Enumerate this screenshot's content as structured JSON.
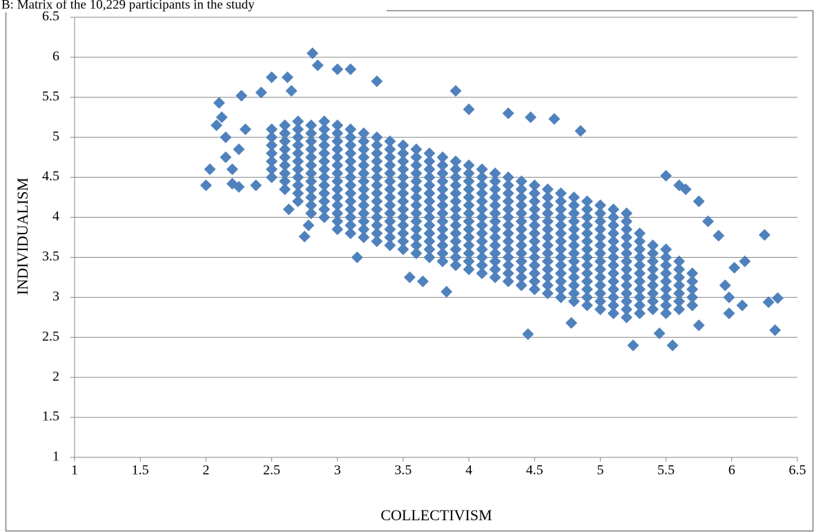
{
  "chart_data": {
    "type": "scatter",
    "title": "B: Matrix of the 10,229 participants in the study",
    "xlabel": "COLLECTIVISM",
    "ylabel": "INDIVIDUALISM",
    "color": "#4f81bd",
    "grid": true,
    "xlim": [
      1,
      6.5
    ],
    "ylim": [
      1,
      6.5
    ],
    "xticks": [
      1,
      1.5,
      2,
      2.5,
      3,
      3.5,
      4,
      4.5,
      5,
      5.5,
      6,
      6.5
    ],
    "yticks": [
      1,
      1.5,
      2,
      2.5,
      3,
      3.5,
      4,
      4.5,
      5,
      5.5,
      6,
      6.5
    ],
    "x": [
      2.5,
      2.5,
      2.5,
      2.5,
      2.5,
      2.5,
      2.5,
      2.6,
      2.6,
      2.6,
      2.6,
      2.6,
      2.6,
      2.6,
      2.6,
      2.6,
      2.7,
      2.7,
      2.7,
      2.7,
      2.7,
      2.7,
      2.7,
      2.7,
      2.7,
      2.7,
      2.7,
      2.8,
      2.8,
      2.8,
      2.8,
      2.8,
      2.8,
      2.8,
      2.8,
      2.8,
      2.8,
      2.8,
      2.8,
      2.9,
      2.9,
      2.9,
      2.9,
      2.9,
      2.9,
      2.9,
      2.9,
      2.9,
      2.9,
      2.9,
      2.9,
      2.9,
      3,
      3,
      3,
      3,
      3,
      3,
      3,
      3,
      3,
      3,
      3,
      3,
      3,
      3,
      3.1,
      3.1,
      3.1,
      3.1,
      3.1,
      3.1,
      3.1,
      3.1,
      3.1,
      3.1,
      3.1,
      3.1,
      3.1,
      3.1,
      3.2,
      3.2,
      3.2,
      3.2,
      3.2,
      3.2,
      3.2,
      3.2,
      3.2,
      3.2,
      3.2,
      3.2,
      3.2,
      3.2,
      3.3,
      3.3,
      3.3,
      3.3,
      3.3,
      3.3,
      3.3,
      3.3,
      3.3,
      3.3,
      3.3,
      3.3,
      3.3,
      3.3,
      3.4,
      3.4,
      3.4,
      3.4,
      3.4,
      3.4,
      3.4,
      3.4,
      3.4,
      3.4,
      3.4,
      3.4,
      3.4,
      3.4,
      3.5,
      3.5,
      3.5,
      3.5,
      3.5,
      3.5,
      3.5,
      3.5,
      3.5,
      3.5,
      3.5,
      3.5,
      3.5,
      3.5,
      3.6,
      3.6,
      3.6,
      3.6,
      3.6,
      3.6,
      3.6,
      3.6,
      3.6,
      3.6,
      3.6,
      3.6,
      3.6,
      3.6,
      3.7,
      3.7,
      3.7,
      3.7,
      3.7,
      3.7,
      3.7,
      3.7,
      3.7,
      3.7,
      3.7,
      3.7,
      3.7,
      3.7,
      3.8,
      3.8,
      3.8,
      3.8,
      3.8,
      3.8,
      3.8,
      3.8,
      3.8,
      3.8,
      3.8,
      3.8,
      3.8,
      3.8,
      3.9,
      3.9,
      3.9,
      3.9,
      3.9,
      3.9,
      3.9,
      3.9,
      3.9,
      3.9,
      3.9,
      3.9,
      3.9,
      3.9,
      4,
      4,
      4,
      4,
      4,
      4,
      4,
      4,
      4,
      4,
      4,
      4,
      4,
      4,
      4.1,
      4.1,
      4.1,
      4.1,
      4.1,
      4.1,
      4.1,
      4.1,
      4.1,
      4.1,
      4.1,
      4.1,
      4.1,
      4.1,
      4.2,
      4.2,
      4.2,
      4.2,
      4.2,
      4.2,
      4.2,
      4.2,
      4.2,
      4.2,
      4.2,
      4.2,
      4.2,
      4.2,
      4.3,
      4.3,
      4.3,
      4.3,
      4.3,
      4.3,
      4.3,
      4.3,
      4.3,
      4.3,
      4.3,
      4.3,
      4.3,
      4.3,
      4.4,
      4.4,
      4.4,
      4.4,
      4.4,
      4.4,
      4.4,
      4.4,
      4.4,
      4.4,
      4.4,
      4.4,
      4.4,
      4.4,
      4.5,
      4.5,
      4.5,
      4.5,
      4.5,
      4.5,
      4.5,
      4.5,
      4.5,
      4.5,
      4.5,
      4.5,
      4.5,
      4.5,
      4.6,
      4.6,
      4.6,
      4.6,
      4.6,
      4.6,
      4.6,
      4.6,
      4.6,
      4.6,
      4.6,
      4.6,
      4.6,
      4.6,
      4.7,
      4.7,
      4.7,
      4.7,
      4.7,
      4.7,
      4.7,
      4.7,
      4.7,
      4.7,
      4.7,
      4.7,
      4.7,
      4.7,
      4.8,
      4.8,
      4.8,
      4.8,
      4.8,
      4.8,
      4.8,
      4.8,
      4.8,
      4.8,
      4.8,
      4.8,
      4.8,
      4.8,
      4.9,
      4.9,
      4.9,
      4.9,
      4.9,
      4.9,
      4.9,
      4.9,
      4.9,
      4.9,
      4.9,
      4.9,
      4.9,
      4.9,
      5,
      5,
      5,
      5,
      5,
      5,
      5,
      5,
      5,
      5,
      5,
      5,
      5,
      5,
      5.1,
      5.1,
      5.1,
      5.1,
      5.1,
      5.1,
      5.1,
      5.1,
      5.1,
      5.1,
      5.1,
      5.1,
      5.1,
      5.1,
      5.2,
      5.2,
      5.2,
      5.2,
      5.2,
      5.2,
      5.2,
      5.2,
      5.2,
      5.2,
      5.2,
      5.2,
      5.2,
      5.2,
      5.3,
      5.3,
      5.3,
      5.3,
      5.3,
      5.3,
      5.3,
      5.3,
      5.3,
      5.3,
      5.3,
      5.4,
      5.4,
      5.4,
      5.4,
      5.4,
      5.4,
      5.4,
      5.4,
      5.4,
      5.5,
      5.5,
      5.5,
      5.5,
      5.5,
      5.5,
      5.5,
      5.5,
      5.5,
      5.6,
      5.6,
      5.6,
      5.6,
      5.6,
      5.6,
      5.6,
      5.7,
      5.7,
      5.7,
      5.7,
      5.7,
      2,
      2.03,
      2.08,
      2.1,
      2.12,
      2.15,
      2.15,
      2.2,
      2.2,
      2.25,
      2.27,
      2.3,
      2.25,
      2.38,
      2.42,
      2.5,
      2.62,
      2.65,
      2.75,
      2.78,
      2.81,
      2.85,
      3,
      3.1,
      3.3,
      2.63,
      3.15,
      3.55,
      3.65,
      3.83,
      3.9,
      4,
      4.3,
      4.47,
      4.65,
      4.85,
      4.45,
      4.78,
      5.25,
      5.55,
      5.45,
      5.5,
      5.6,
      5.65,
      5.75,
      5.82,
      5.9,
      6.25,
      6.1,
      6.02,
      5.95,
      5.98,
      5.98,
      6.08,
      6.28,
      6.35,
      6.33,
      5.75
    ],
    "values": [
      4.5,
      4.6,
      4.7,
      4.8,
      4.9,
      5,
      5.1,
      4.35,
      4.45,
      4.55,
      4.65,
      4.75,
      4.85,
      4.95,
      5.05,
      5.15,
      4.2,
      4.3,
      4.4,
      4.5,
      4.6,
      4.7,
      4.8,
      4.9,
      5,
      5.1,
      5.2,
      4.05,
      4.15,
      4.25,
      4.35,
      4.45,
      4.55,
      4.65,
      4.75,
      4.85,
      4.95,
      5.05,
      5.15,
      4,
      4.1,
      4.2,
      4.3,
      4.4,
      4.5,
      4.6,
      4.7,
      4.8,
      4.9,
      5,
      5.1,
      5.2,
      3.85,
      3.95,
      4.05,
      4.15,
      4.25,
      4.35,
      4.45,
      4.55,
      4.65,
      4.75,
      4.85,
      4.95,
      5.05,
      5.15,
      3.8,
      3.9,
      4,
      4.1,
      4.2,
      4.3,
      4.4,
      4.5,
      4.6,
      4.7,
      4.8,
      4.9,
      5,
      5.1,
      3.75,
      3.85,
      3.95,
      4.05,
      4.15,
      4.25,
      4.35,
      4.45,
      4.55,
      4.65,
      4.75,
      4.85,
      4.95,
      5.05,
      3.7,
      3.8,
      3.9,
      4,
      4.1,
      4.2,
      4.3,
      4.4,
      4.5,
      4.6,
      4.7,
      4.8,
      4.9,
      5,
      3.65,
      3.75,
      3.85,
      3.95,
      4.05,
      4.15,
      4.25,
      4.35,
      4.45,
      4.55,
      4.65,
      4.75,
      4.85,
      4.95,
      3.6,
      3.7,
      3.8,
      3.9,
      4,
      4.1,
      4.2,
      4.3,
      4.4,
      4.5,
      4.6,
      4.7,
      4.8,
      4.9,
      3.55,
      3.65,
      3.75,
      3.85,
      3.95,
      4.05,
      4.15,
      4.25,
      4.35,
      4.45,
      4.55,
      4.65,
      4.75,
      4.85,
      3.5,
      3.6,
      3.7,
      3.8,
      3.9,
      4,
      4.1,
      4.2,
      4.3,
      4.4,
      4.5,
      4.6,
      4.7,
      4.8,
      3.45,
      3.55,
      3.65,
      3.75,
      3.85,
      3.95,
      4.05,
      4.15,
      4.25,
      4.35,
      4.45,
      4.55,
      4.65,
      4.75,
      3.4,
      3.5,
      3.6,
      3.7,
      3.8,
      3.9,
      4,
      4.1,
      4.2,
      4.3,
      4.4,
      4.5,
      4.6,
      4.7,
      3.35,
      3.45,
      3.55,
      3.65,
      3.75,
      3.85,
      3.95,
      4.05,
      4.15,
      4.25,
      4.35,
      4.45,
      4.55,
      4.65,
      3.3,
      3.4,
      3.5,
      3.6,
      3.7,
      3.8,
      3.9,
      4,
      4.1,
      4.2,
      4.3,
      4.4,
      4.5,
      4.6,
      3.25,
      3.35,
      3.45,
      3.55,
      3.65,
      3.75,
      3.85,
      3.95,
      4.05,
      4.15,
      4.25,
      4.35,
      4.45,
      4.55,
      3.2,
      3.3,
      3.4,
      3.5,
      3.6,
      3.7,
      3.8,
      3.9,
      4,
      4.1,
      4.2,
      4.3,
      4.4,
      4.5,
      3.15,
      3.25,
      3.35,
      3.45,
      3.55,
      3.65,
      3.75,
      3.85,
      3.95,
      4.05,
      4.15,
      4.25,
      4.35,
      4.45,
      3.1,
      3.2,
      3.3,
      3.4,
      3.5,
      3.6,
      3.7,
      3.8,
      3.9,
      4,
      4.1,
      4.2,
      4.3,
      4.4,
      3.05,
      3.15,
      3.25,
      3.35,
      3.45,
      3.55,
      3.65,
      3.75,
      3.85,
      3.95,
      4.05,
      4.15,
      4.25,
      4.35,
      3,
      3.1,
      3.2,
      3.3,
      3.4,
      3.5,
      3.6,
      3.7,
      3.8,
      3.9,
      4,
      4.1,
      4.2,
      4.3,
      2.95,
      3.05,
      3.15,
      3.25,
      3.35,
      3.45,
      3.55,
      3.65,
      3.75,
      3.85,
      3.95,
      4.05,
      4.15,
      4.25,
      2.9,
      3,
      3.1,
      3.2,
      3.3,
      3.4,
      3.5,
      3.6,
      3.7,
      3.8,
      3.9,
      4,
      4.1,
      4.2,
      2.85,
      2.95,
      3.05,
      3.15,
      3.25,
      3.35,
      3.45,
      3.55,
      3.65,
      3.75,
      3.85,
      3.95,
      4.05,
      4.15,
      2.8,
      2.9,
      3,
      3.1,
      3.2,
      3.3,
      3.4,
      3.5,
      3.6,
      3.7,
      3.8,
      3.9,
      4,
      4.1,
      2.75,
      2.85,
      2.95,
      3.05,
      3.15,
      3.25,
      3.35,
      3.45,
      3.55,
      3.65,
      3.75,
      3.85,
      3.95,
      4.05,
      2.8,
      2.9,
      3,
      3.1,
      3.2,
      3.3,
      3.4,
      3.5,
      3.6,
      3.7,
      3.8,
      2.85,
      2.95,
      3.05,
      3.15,
      3.25,
      3.35,
      3.45,
      3.55,
      3.65,
      2.8,
      2.9,
      3,
      3.1,
      3.2,
      3.3,
      3.4,
      3.5,
      3.6,
      2.85,
      2.95,
      3.05,
      3.15,
      3.25,
      3.35,
      3.45,
      2.9,
      3,
      3.1,
      3.2,
      3.3,
      4.4,
      4.6,
      5.15,
      5.43,
      5.25,
      5,
      4.75,
      4.6,
      4.42,
      4.38,
      5.52,
      5.1,
      4.85,
      4.4,
      5.56,
      5.75,
      5.75,
      5.58,
      3.76,
      3.9,
      6.05,
      5.9,
      5.85,
      5.85,
      5.7,
      4.1,
      3.5,
      3.25,
      3.2,
      3.07,
      5.58,
      5.35,
      5.3,
      5.25,
      5.23,
      5.08,
      2.54,
      2.68,
      2.4,
      2.4,
      2.55,
      4.52,
      4.4,
      4.35,
      4.2,
      3.95,
      3.77,
      3.78,
      3.45,
      3.37,
      3.15,
      3,
      2.8,
      2.9,
      2.94,
      2.99,
      2.59,
      2.65
    ]
  }
}
